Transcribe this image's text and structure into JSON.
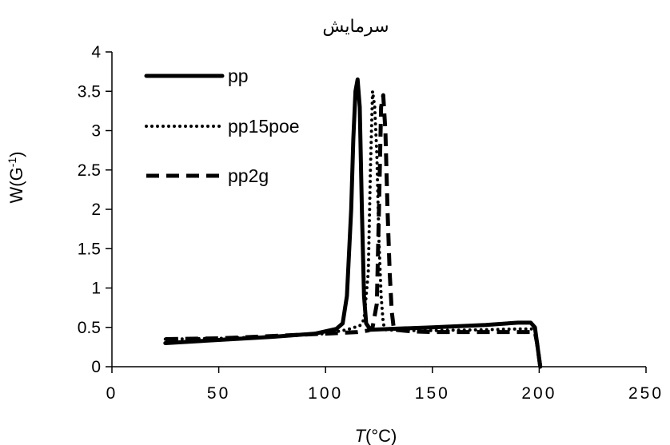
{
  "chart_data": {
    "type": "line",
    "title": "سرمایش",
    "xlabel": "T(°C)",
    "ylabel": "W(G-1)",
    "xlim": [
      0,
      250
    ],
    "ylim": [
      0,
      4
    ],
    "xticks": [
      "0",
      "50",
      "100",
      "150",
      "200",
      "250"
    ],
    "yticks": [
      "0",
      "0.5",
      "1",
      "1.5",
      "2",
      "2.5",
      "3",
      "3.5",
      "4"
    ],
    "grid": false,
    "legend_position": "top-left",
    "series": [
      {
        "name": "pp",
        "style": "solid",
        "x": [
          25,
          50,
          75,
          95,
          105,
          108,
          110,
          112,
          113,
          114,
          115,
          116,
          117,
          118,
          119,
          121,
          130,
          150,
          175,
          190,
          196,
          198,
          199,
          200,
          200.5
        ],
        "y": [
          0.3,
          0.34,
          0.38,
          0.42,
          0.48,
          0.55,
          0.9,
          2.0,
          2.9,
          3.5,
          3.65,
          3.3,
          2.0,
          0.9,
          0.55,
          0.47,
          0.48,
          0.5,
          0.53,
          0.56,
          0.56,
          0.5,
          0.3,
          0.1,
          0
        ]
      },
      {
        "name": "pp15poe",
        "style": "dotted",
        "x": [
          25,
          50,
          75,
          100,
          110,
          116,
          118,
          120,
          121,
          122,
          123,
          124,
          125,
          126,
          127,
          128,
          135,
          150,
          175,
          190,
          198,
          199,
          200,
          200.5
        ],
        "y": [
          0.35,
          0.36,
          0.38,
          0.42,
          0.47,
          0.52,
          0.6,
          1.2,
          2.5,
          3.5,
          3.3,
          2.7,
          1.6,
          0.9,
          0.55,
          0.47,
          0.46,
          0.46,
          0.47,
          0.48,
          0.48,
          0.3,
          0.1,
          0
        ]
      },
      {
        "name": "pp2g",
        "style": "dashed",
        "x": [
          25,
          50,
          75,
          100,
          115,
          120,
          122,
          124,
          125,
          126,
          127,
          128,
          129,
          130,
          131,
          132,
          140,
          150,
          175,
          190,
          198,
          199,
          200,
          200.5
        ],
        "y": [
          0.35,
          0.36,
          0.39,
          0.42,
          0.44,
          0.46,
          0.5,
          0.8,
          2.0,
          3.3,
          3.45,
          3.0,
          2.0,
          1.2,
          0.7,
          0.47,
          0.45,
          0.44,
          0.44,
          0.44,
          0.44,
          0.3,
          0.1,
          0
        ]
      }
    ]
  }
}
